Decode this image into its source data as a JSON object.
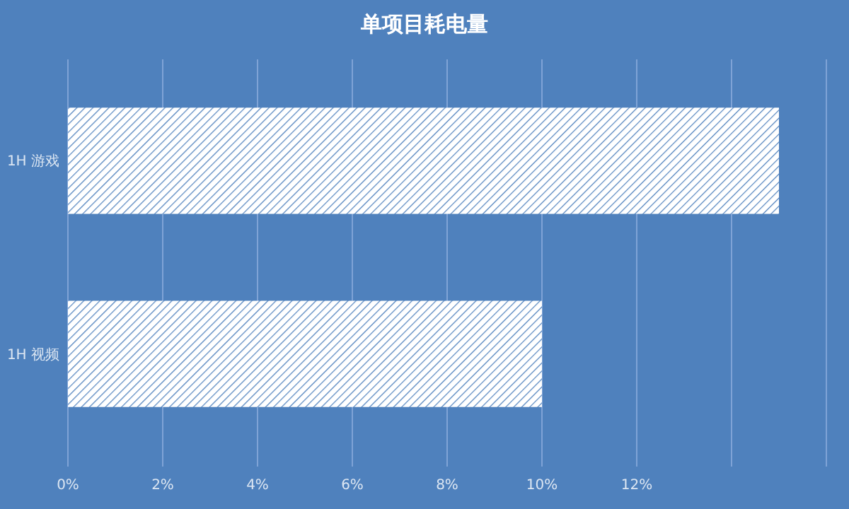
{
  "chart_data": {
    "type": "bar",
    "orientation": "horizontal",
    "title": "单项目耗电量",
    "categories": [
      "1H 游戏",
      "1H 视频"
    ],
    "series": [
      {
        "color": "#ffffff",
        "values": [
          15,
          10
        ]
      }
    ],
    "xlim": [
      0,
      16
    ],
    "xticks": [
      {
        "value": 0,
        "label": "0%"
      },
      {
        "value": 2,
        "label": "2%"
      },
      {
        "value": 4,
        "label": "4%"
      },
      {
        "value": 6,
        "label": "6%"
      },
      {
        "value": 8,
        "label": "8%"
      },
      {
        "value": 10,
        "label": "10%"
      },
      {
        "value": 12,
        "label": "12%"
      },
      {
        "value": 14,
        "label": null
      },
      {
        "value": 16,
        "label": null
      }
    ],
    "grid": "x"
  }
}
